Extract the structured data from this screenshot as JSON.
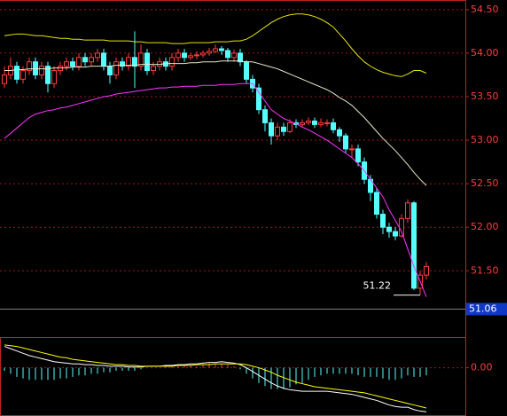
{
  "chart_data": [
    {
      "type": "candlestick",
      "up_color": "#ff3c3c",
      "down_color": "#54ffff",
      "open": [
        53.65,
        53.75,
        53.85,
        53.7,
        53.8,
        53.9,
        53.75,
        53.85,
        53.65,
        53.8,
        53.85,
        53.9,
        53.85,
        53.95,
        53.9,
        53.95,
        54.0,
        53.85,
        53.75,
        53.9,
        53.85,
        53.95,
        53.85,
        54.0,
        53.8,
        53.85,
        53.9,
        53.85,
        53.95,
        54.0,
        53.95,
        53.97,
        53.98,
        54.0,
        54.02,
        54.05,
        54.03,
        53.95,
        54.0,
        53.9,
        53.7,
        53.6,
        53.35,
        53.2,
        53.05,
        53.15,
        53.1,
        53.2,
        53.18,
        53.2,
        53.22,
        53.18,
        53.2,
        53.2,
        53.12,
        53.05,
        52.9,
        52.9,
        52.75,
        52.55,
        52.4,
        52.15,
        52.0,
        51.95,
        51.9,
        52.1,
        52.28,
        51.3,
        51.45
      ],
      "high": [
        53.85,
        53.95,
        53.9,
        53.85,
        53.95,
        53.95,
        53.9,
        53.9,
        53.85,
        53.9,
        53.95,
        53.95,
        54.0,
        54.0,
        54.0,
        54.05,
        54.05,
        53.9,
        53.95,
        53.95,
        54.0,
        54.25,
        54.1,
        54.05,
        53.9,
        53.95,
        53.95,
        54.0,
        54.05,
        54.05,
        54.0,
        54.02,
        54.03,
        54.06,
        54.1,
        54.08,
        54.06,
        54.04,
        54.05,
        53.92,
        53.75,
        53.65,
        53.4,
        53.25,
        53.2,
        53.2,
        53.24,
        53.24,
        53.24,
        53.26,
        53.26,
        53.25,
        53.24,
        53.25,
        53.15,
        53.08,
        52.95,
        52.95,
        52.8,
        52.6,
        52.45,
        52.2,
        52.05,
        52.0,
        52.15,
        52.32,
        52.3,
        51.5,
        51.6
      ],
      "low": [
        53.6,
        53.7,
        53.65,
        53.65,
        53.75,
        53.7,
        53.7,
        53.55,
        53.6,
        53.75,
        53.8,
        53.8,
        53.8,
        53.85,
        53.85,
        53.9,
        53.8,
        53.65,
        53.7,
        53.8,
        53.8,
        53.6,
        53.8,
        53.75,
        53.75,
        53.8,
        53.8,
        53.8,
        53.9,
        53.9,
        53.92,
        53.93,
        53.95,
        53.97,
        54.0,
        53.98,
        53.9,
        53.9,
        53.85,
        53.65,
        53.55,
        53.3,
        53.1,
        52.95,
        53.0,
        53.05,
        53.08,
        53.14,
        53.15,
        53.17,
        53.14,
        53.15,
        53.16,
        53.08,
        52.98,
        52.85,
        52.8,
        52.7,
        52.5,
        52.3,
        52.1,
        51.92,
        51.88,
        51.85,
        51.88,
        52.05,
        51.28,
        51.22,
        51.4
      ],
      "close": [
        53.75,
        53.85,
        53.7,
        53.8,
        53.9,
        53.75,
        53.85,
        53.65,
        53.8,
        53.85,
        53.9,
        53.85,
        53.95,
        53.9,
        53.95,
        54.0,
        53.85,
        53.75,
        53.9,
        53.85,
        53.95,
        53.85,
        54.0,
        53.8,
        53.85,
        53.9,
        53.85,
        53.95,
        54.0,
        53.95,
        53.97,
        53.98,
        54.0,
        54.02,
        54.05,
        54.03,
        53.95,
        54.0,
        53.9,
        53.7,
        53.6,
        53.35,
        53.2,
        53.05,
        53.15,
        53.1,
        53.2,
        53.18,
        53.2,
        53.22,
        53.18,
        53.2,
        53.2,
        53.12,
        53.05,
        52.9,
        52.9,
        52.75,
        52.55,
        52.4,
        52.15,
        52.0,
        51.95,
        51.9,
        52.1,
        52.28,
        51.3,
        51.45,
        51.55
      ],
      "series": [
        {
          "color": "#e6e600",
          "values": [
            54.2,
            54.21,
            54.22,
            54.22,
            54.21,
            54.2,
            54.2,
            54.19,
            54.18,
            54.17,
            54.17,
            54.16,
            54.16,
            54.15,
            54.15,
            54.15,
            54.15,
            54.14,
            54.14,
            54.14,
            54.14,
            54.13,
            54.13,
            54.12,
            54.12,
            54.12,
            54.12,
            54.11,
            54.11,
            54.11,
            54.12,
            54.12,
            54.12,
            54.12,
            54.13,
            54.13,
            54.13,
            54.14,
            54.14,
            54.16,
            54.2,
            54.25,
            54.3,
            54.35,
            54.39,
            54.42,
            54.44,
            54.45,
            54.45,
            54.44,
            54.42,
            54.39,
            54.35,
            54.3,
            54.22,
            54.14,
            54.05,
            53.97,
            53.9,
            53.85,
            53.81,
            53.78,
            53.76,
            53.74,
            53.73,
            53.76,
            53.8,
            53.8,
            53.77
          ]
        },
        {
          "color": "#e8e8c8",
          "values": [
            53.8,
            53.8,
            53.81,
            53.81,
            53.82,
            53.82,
            53.82,
            53.82,
            53.83,
            53.83,
            53.83,
            53.84,
            53.84,
            53.84,
            53.85,
            53.85,
            53.85,
            53.85,
            53.86,
            53.86,
            53.86,
            53.86,
            53.87,
            53.87,
            53.87,
            53.87,
            53.88,
            53.88,
            53.88,
            53.88,
            53.89,
            53.89,
            53.9,
            53.9,
            53.9,
            53.91,
            53.91,
            53.91,
            53.91,
            53.9,
            53.9,
            53.88,
            53.86,
            53.84,
            53.82,
            53.79,
            53.76,
            53.73,
            53.7,
            53.67,
            53.64,
            53.61,
            53.58,
            53.54,
            53.49,
            53.45,
            53.4,
            53.33,
            53.26,
            53.18,
            53.1,
            53.02,
            52.95,
            52.88,
            52.8,
            52.72,
            52.63,
            52.55,
            52.48
          ]
        },
        {
          "color": "#ff33ff",
          "values": [
            53.02,
            53.08,
            53.14,
            53.2,
            53.26,
            53.3,
            53.32,
            53.34,
            53.35,
            53.37,
            53.38,
            53.4,
            53.42,
            53.44,
            53.46,
            53.48,
            53.5,
            53.51,
            53.53,
            53.54,
            53.55,
            53.56,
            53.57,
            53.58,
            53.59,
            53.6,
            53.6,
            53.61,
            53.61,
            53.62,
            53.62,
            53.62,
            53.63,
            53.63,
            53.63,
            53.64,
            53.64,
            53.64,
            53.65,
            53.65,
            53.65,
            53.55,
            53.45,
            53.35,
            53.3,
            53.25,
            53.22,
            53.19,
            53.15,
            53.12,
            53.08,
            53.04,
            53.0,
            52.95,
            52.9,
            52.85,
            52.8,
            52.73,
            52.65,
            52.55,
            52.45,
            52.35,
            52.2,
            52.08,
            51.95,
            51.75,
            51.55,
            51.38,
            51.2
          ]
        }
      ],
      "annotations": [
        {
          "x": 67,
          "value": 51.22
        }
      ],
      "last_price": 51.06,
      "ylim": [
        50.82,
        54.59
      ],
      "yticks": [
        {
          "value": 51.5,
          "label": "51.50"
        },
        {
          "value": 52,
          "label": "52.00"
        },
        {
          "value": 52.5,
          "label": "52.50"
        },
        {
          "value": 53,
          "label": "53.00"
        },
        {
          "value": 53.5,
          "label": "53.50"
        },
        {
          "value": 54,
          "label": "54.00"
        },
        {
          "value": 54.5,
          "label": "54.50"
        }
      ],
      "grid": true
    },
    {
      "type": "macd",
      "series": [
        {
          "color": "#ffffff",
          "values": [
            0.28,
            0.25,
            0.22,
            0.19,
            0.16,
            0.14,
            0.12,
            0.1,
            0.08,
            0.07,
            0.06,
            0.05,
            0.05,
            0.04,
            0.04,
            0.03,
            0.03,
            0.02,
            0.02,
            0.02,
            0.01,
            0.01,
            0.01,
            0.02,
            0.02,
            0.02,
            0.03,
            0.03,
            0.04,
            0.04,
            0.05,
            0.05,
            0.06,
            0.07,
            0.07,
            0.08,
            0.07,
            0.06,
            0.04,
            0.0,
            -0.05,
            -0.1,
            -0.15,
            -0.2,
            -0.24,
            -0.27,
            -0.29,
            -0.3,
            -0.31,
            -0.31,
            -0.31,
            -0.31,
            -0.31,
            -0.32,
            -0.33,
            -0.34,
            -0.35,
            -0.37,
            -0.39,
            -0.41,
            -0.43,
            -0.46,
            -0.49,
            -0.51,
            -0.52,
            -0.52,
            -0.55,
            -0.57,
            -0.58
          ]
        },
        {
          "color": "#ffff00",
          "values": [
            0.3,
            0.29,
            0.28,
            0.26,
            0.24,
            0.22,
            0.2,
            0.18,
            0.16,
            0.14,
            0.13,
            0.11,
            0.1,
            0.09,
            0.08,
            0.07,
            0.06,
            0.05,
            0.04,
            0.04,
            0.03,
            0.03,
            0.02,
            0.02,
            0.02,
            0.02,
            0.02,
            0.02,
            0.03,
            0.03,
            0.03,
            0.04,
            0.04,
            0.04,
            0.05,
            0.05,
            0.05,
            0.05,
            0.05,
            0.04,
            0.02,
            0.0,
            -0.03,
            -0.06,
            -0.1,
            -0.13,
            -0.16,
            -0.19,
            -0.21,
            -0.23,
            -0.25,
            -0.26,
            -0.27,
            -0.28,
            -0.29,
            -0.3,
            -0.31,
            -0.32,
            -0.33,
            -0.35,
            -0.37,
            -0.39,
            -0.41,
            -0.43,
            -0.45,
            -0.47,
            -0.49,
            -0.51,
            -0.53
          ]
        }
      ],
      "histogram": {
        "up_color": "#ff3c3c",
        "down_color": "#54ffff",
        "values": [
          -0.04,
          -0.08,
          -0.12,
          -0.14,
          -0.16,
          -0.16,
          -0.16,
          -0.16,
          -0.16,
          -0.14,
          -0.14,
          -0.12,
          -0.1,
          -0.1,
          -0.08,
          -0.08,
          -0.06,
          -0.06,
          -0.04,
          -0.04,
          -0.04,
          -0.04,
          -0.02,
          0.0,
          0.0,
          0.0,
          0.02,
          0.02,
          0.02,
          0.02,
          0.04,
          0.02,
          0.04,
          0.06,
          0.04,
          0.06,
          0.04,
          0.02,
          -0.02,
          -0.08,
          -0.14,
          -0.2,
          -0.24,
          -0.28,
          -0.28,
          -0.28,
          -0.26,
          -0.22,
          -0.2,
          -0.16,
          -0.12,
          -0.1,
          -0.08,
          -0.08,
          -0.08,
          -0.08,
          -0.08,
          -0.1,
          -0.12,
          -0.12,
          -0.12,
          -0.14,
          -0.16,
          -0.16,
          -0.14,
          -0.1,
          -0.12,
          -0.12,
          -0.1
        ]
      },
      "ylim": [
        -0.6,
        0.38
      ],
      "yticks": [
        {
          "value": 0,
          "label": "0.00"
        }
      ],
      "grid": true
    }
  ]
}
